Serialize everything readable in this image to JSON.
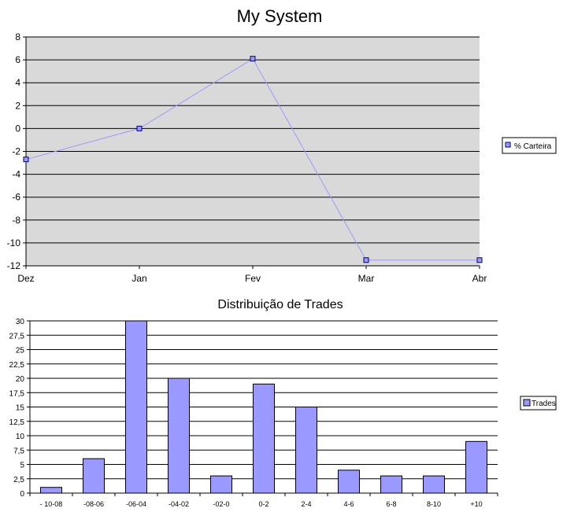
{
  "chart_data": [
    {
      "type": "line",
      "title": "My System",
      "categories": [
        "Dez",
        "Jan",
        "Fev",
        "Mar",
        "Abr"
      ],
      "series": [
        {
          "name": "% Carteira",
          "values": [
            -2.7,
            0,
            6.1,
            -11.5,
            -11.5
          ]
        }
      ],
      "ylim": [
        -12,
        8
      ],
      "yticks": [
        8,
        6,
        4,
        2,
        0,
        -2,
        -4,
        -6,
        -8,
        -10,
        -12
      ],
      "grid": true,
      "legend": "right",
      "colors": {
        "line": "#9999ff",
        "marker_fill": "#9999ff",
        "plot_bg": "#d9d9d9"
      }
    },
    {
      "type": "bar",
      "title": "Distribuição de Trades",
      "categories": [
        "- 10-08",
        "-08-06",
        "-06-04",
        "-04-02",
        "-02-0",
        "0-2",
        "2-4",
        "4-6",
        "6-8",
        "8-10",
        "+10"
      ],
      "series": [
        {
          "name": "Trades",
          "values": [
            1,
            6,
            30,
            20,
            3,
            19,
            15,
            4,
            3,
            3,
            9
          ]
        }
      ],
      "ylim": [
        0,
        30
      ],
      "yticks": [
        "30",
        "27,5",
        "25",
        "22,5",
        "20",
        "17,5",
        "15",
        "12,5",
        "10",
        "7,5",
        "5",
        "2,5",
        "0"
      ],
      "grid": true,
      "legend": "right",
      "colors": {
        "bar": "#9999ff",
        "plot_bg": "#ffffff"
      }
    }
  ]
}
